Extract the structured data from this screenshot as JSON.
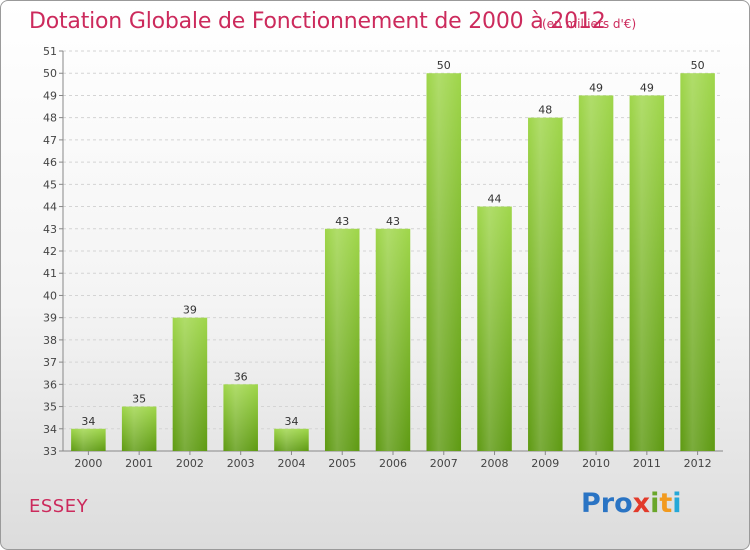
{
  "chart_data": {
    "type": "bar",
    "title": "Dotation Globale de Fonctionnement de 2000 à 2012",
    "subtitle": "(en milliers d'€)",
    "categories": [
      "2000",
      "2001",
      "2002",
      "2003",
      "2004",
      "2005",
      "2006",
      "2007",
      "2008",
      "2009",
      "2010",
      "2011",
      "2012"
    ],
    "values": [
      34,
      35,
      39,
      36,
      34,
      43,
      43,
      50,
      44,
      48,
      49,
      49,
      50
    ],
    "ylim": [
      33,
      51
    ],
    "yticks": [
      33,
      34,
      35,
      36,
      37,
      38,
      39,
      40,
      41,
      42,
      43,
      44,
      45,
      46,
      47,
      48,
      49,
      50,
      51
    ],
    "grid": true,
    "bar_color": "#7ab830",
    "legend": "none"
  },
  "town": "ESSEY",
  "logo": {
    "p1": "Pro",
    "p2": "x",
    "p3": "i",
    "p4": "t",
    "p5": "i"
  }
}
